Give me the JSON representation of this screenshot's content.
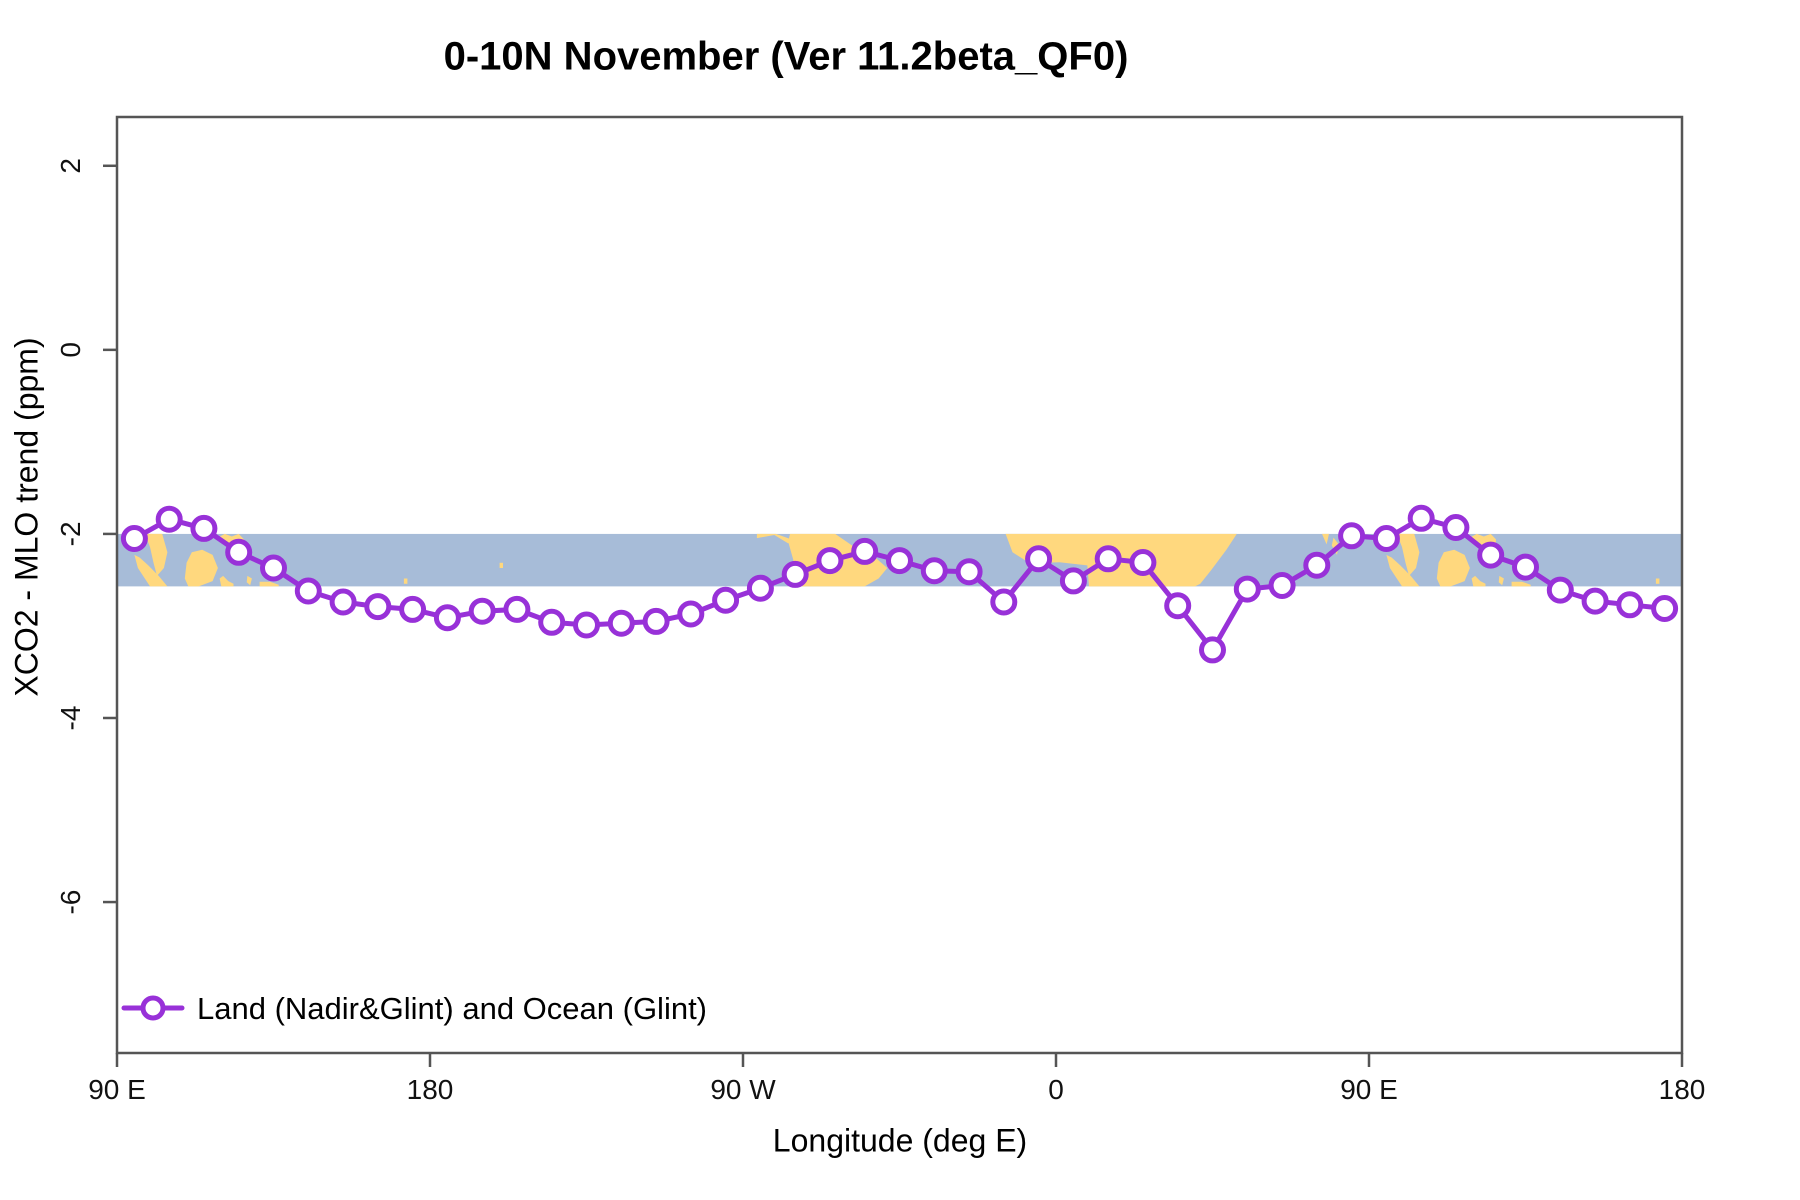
{
  "chart_data": {
    "type": "line",
    "title": "0-10N November (Ver 11.2beta_QF0)",
    "xlabel": "Longitude (deg E)",
    "ylabel": "XCO2 - MLO trend (ppm)",
    "xlim_deg": [
      90,
      540
    ],
    "ylim": [
      -7.64,
      2.53
    ],
    "grid": false,
    "x_ticks": [
      {
        "deg": 90,
        "label": "90 E"
      },
      {
        "deg": 180,
        "label": "180"
      },
      {
        "deg": 270,
        "label": "90 W"
      },
      {
        "deg": 360,
        "label": "0"
      },
      {
        "deg": 450,
        "label": "90 E"
      },
      {
        "deg": 540,
        "label": "180"
      }
    ],
    "y_ticks": [
      {
        "value": 2,
        "label": "2"
      },
      {
        "value": 0,
        "label": "0"
      },
      {
        "value": -2,
        "label": "-2"
      },
      {
        "value": -4,
        "label": "-4"
      },
      {
        "value": -6,
        "label": "-6"
      }
    ],
    "series": [
      {
        "name": "Land (Nadir&Glint) and Ocean (Glint)",
        "color": "#9831d8",
        "marker": "open-circle",
        "x_deg": [
          95,
          105,
          115,
          125,
          135,
          145,
          155,
          165,
          175,
          185,
          195,
          205,
          215,
          225,
          235,
          245,
          255,
          265,
          275,
          285,
          295,
          305,
          315,
          325,
          335,
          345,
          355,
          365,
          375,
          385,
          395,
          405,
          415,
          425,
          435,
          445,
          455,
          465,
          475,
          485,
          495,
          505,
          515,
          525,
          535
        ],
        "y_ppm": [
          -2.05,
          -1.84,
          -1.94,
          -2.2,
          -2.37,
          -2.62,
          -2.74,
          -2.79,
          -2.82,
          -2.91,
          -2.84,
          -2.82,
          -2.96,
          -2.99,
          -2.97,
          -2.95,
          -2.87,
          -2.72,
          -2.59,
          -2.44,
          -2.29,
          -2.19,
          -2.29,
          -2.4,
          -2.41,
          -2.74,
          -2.27,
          -2.51,
          -2.27,
          -2.31,
          -2.78,
          -3.26,
          -2.6,
          -2.56,
          -2.34,
          -2.02,
          -2.05,
          -1.83,
          -1.93,
          -2.23,
          -2.36,
          -2.61,
          -2.73,
          -2.77,
          -2.81
        ]
      }
    ],
    "legend": {
      "position": "bottom-left",
      "entries": [
        "Land (Nadir&Glint) and Ocean (Glint)"
      ]
    },
    "map_band": {
      "description": "world map strip for latitude 0-10N",
      "value_top": -2.0,
      "value_bottom": -2.57,
      "ocean_color": "#a7bcd8",
      "land_color": "#ffd87e",
      "wrap_offsets_deg": [
        0,
        360
      ],
      "land_patches": [
        {
          "name": "malay-peninsula",
          "pts": [
            [
              98,
              10
            ],
            [
              103,
              10
            ],
            [
              104.5,
              6.5
            ],
            [
              103.5,
              3.5
            ],
            [
              101.5,
              2
            ],
            [
              100.5,
              4.5
            ],
            [
              99.5,
              7.5
            ]
          ]
        },
        {
          "name": "sumatra",
          "pts": [
            [
              95,
              6
            ],
            [
              96.5,
              5.5
            ],
            [
              99,
              4
            ],
            [
              102,
              2
            ],
            [
              104.5,
              0
            ],
            [
              99.5,
              0
            ],
            [
              96,
              3.5
            ]
          ]
        },
        {
          "name": "borneo",
          "pts": [
            [
              109.5,
              1.5
            ],
            [
              110,
              4.5
            ],
            [
              111.5,
              6.5
            ],
            [
              114.5,
              7
            ],
            [
              117.5,
              6
            ],
            [
              119,
              3.5
            ],
            [
              117.5,
              1
            ],
            [
              113.5,
              0
            ],
            [
              110.5,
              0
            ]
          ]
        },
        {
          "name": "sulawesi",
          "pts": [
            [
              119.5,
              1.5
            ],
            [
              120.5,
              2
            ],
            [
              122,
              1
            ],
            [
              123.5,
              0.5
            ],
            [
              123.5,
              0
            ],
            [
              120,
              0
            ]
          ]
        },
        {
          "name": "philippines-mindanao",
          "pts": [
            [
              119,
              9.3
            ],
            [
              121,
              10
            ],
            [
              123,
              9.5
            ],
            [
              125,
              10
            ],
            [
              126.5,
              9
            ],
            [
              126.5,
              7
            ],
            [
              124.5,
              6
            ],
            [
              122.5,
              6.5
            ],
            [
              122,
              8
            ]
          ]
        },
        {
          "name": "halmahera",
          "pts": [
            [
              127.5,
              2
            ],
            [
              128.8,
              1.5
            ],
            [
              128.3,
              0.2
            ],
            [
              127.3,
              0.8
            ]
          ]
        },
        {
          "name": "new-guinea-north",
          "pts": [
            [
              131,
              0.9
            ],
            [
              134,
              0.9
            ],
            [
              136.5,
              0.3
            ],
            [
              136.5,
              0
            ],
            [
              131,
              0
            ]
          ]
        },
        {
          "name": "gilbert-islands",
          "pts": [
            [
              172.5,
              1.5
            ],
            [
              173.5,
              1.5
            ],
            [
              173.5,
              0.5
            ],
            [
              172.5,
              0.5
            ]
          ]
        },
        {
          "name": "line-islands",
          "pts": [
            [
              200,
              4.5
            ],
            [
              201,
              4.5
            ],
            [
              201,
              3.5
            ],
            [
              200,
              3.5
            ]
          ]
        },
        {
          "name": "central-america",
          "pts": [
            [
              274,
              9.2
            ],
            [
              279,
              9.8
            ],
            [
              283,
              8.2
            ],
            [
              283.8,
              9
            ],
            [
              279.5,
              10
            ],
            [
              274,
              10
            ]
          ]
        },
        {
          "name": "south-america-north",
          "pts": [
            [
              283.5,
              10
            ],
            [
              296.5,
              10
            ],
            [
              302,
              7.5
            ],
            [
              308,
              5.5
            ],
            [
              311.5,
              3.5
            ],
            [
              309,
              1.5
            ],
            [
              305,
              0
            ],
            [
              285.5,
              0
            ],
            [
              283.5,
              1.5
            ],
            [
              284.5,
              5
            ],
            [
              283,
              8.5
            ]
          ]
        },
        {
          "name": "africa",
          "pts": [
            [
              345.5,
              10
            ],
            [
              412,
              10
            ],
            [
              409,
              7
            ],
            [
              404.5,
              3
            ],
            [
              401.5,
              0.5
            ],
            [
              400,
              0
            ],
            [
              369.5,
              0
            ],
            [
              369,
              4
            ],
            [
              361,
              4.6
            ],
            [
              352.5,
              4.4
            ],
            [
              347.5,
              6.5
            ]
          ]
        },
        {
          "name": "india-south-tip",
          "pts": [
            [
              436.5,
              10
            ],
            [
              438.5,
              10
            ],
            [
              437.8,
              8
            ]
          ]
        },
        {
          "name": "sri-lanka",
          "pts": [
            [
              439.8,
              9.3
            ],
            [
              441.3,
              8
            ],
            [
              440.8,
              6
            ],
            [
              439.3,
              7.8
            ]
          ]
        }
      ]
    },
    "colors": {
      "axis": "#555555",
      "text": "#111111",
      "background": "#ffffff"
    }
  }
}
